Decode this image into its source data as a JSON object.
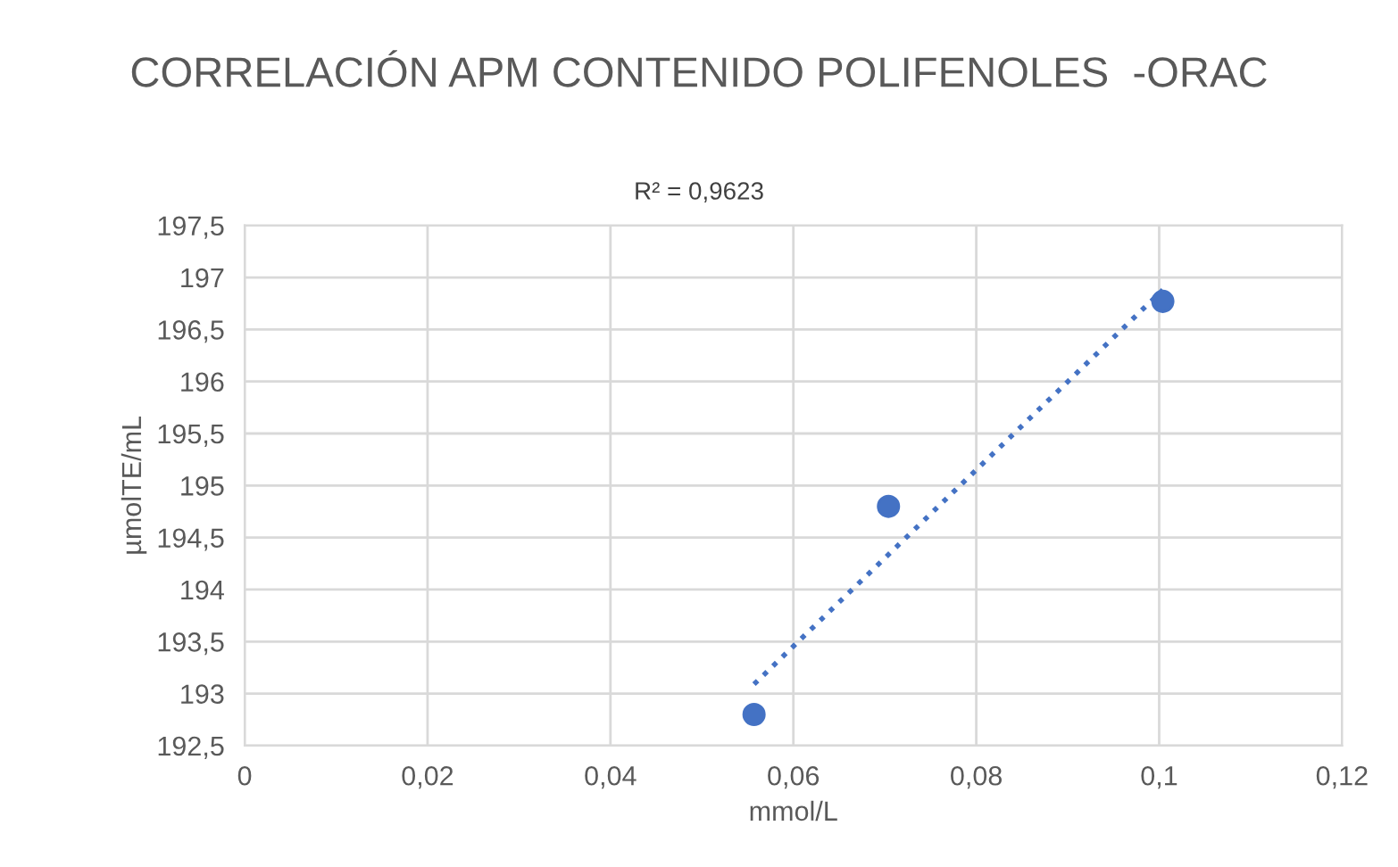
{
  "chart_data": {
    "type": "scatter",
    "title": "CORRELACIÓN APM CONTENIDO POLIFENOLES  -ORAC",
    "xlabel": "mmol/L",
    "ylabel": "µmolTE/mL",
    "series": [
      {
        "color": "#4472c4",
        "x": [
          0.0557,
          0.0704,
          0.1004
        ],
        "values": [
          192.8,
          194.8,
          196.77
        ],
        "marker": "circle"
      },
      {
        "type": "line",
        "color": "#4472c4",
        "x": [
          0.0557,
          0.1004
        ],
        "values": [
          193.09,
          196.88
        ],
        "line_style": "dotted"
      }
    ],
    "annotations": [
      "R² = 0,9623"
    ],
    "xlim": [
      0,
      0.12
    ],
    "xticks": [
      {
        "value": 0,
        "label": "0"
      },
      {
        "value": 0.02,
        "label": "0,02"
      },
      {
        "value": 0.04,
        "label": "0,04"
      },
      {
        "value": 0.06,
        "label": "0,06"
      },
      {
        "value": 0.08,
        "label": "0,08"
      },
      {
        "value": 0.1,
        "label": "0,1"
      },
      {
        "value": 0.12,
        "label": "0,12"
      }
    ],
    "ylim": [
      192.5,
      197.5
    ],
    "yticks": [
      {
        "value": 192.5,
        "label": "192,5"
      },
      {
        "value": 193,
        "label": "193"
      },
      {
        "value": 193.5,
        "label": "193,5"
      },
      {
        "value": 194,
        "label": "194"
      },
      {
        "value": 194.5,
        "label": "194,5"
      },
      {
        "value": 195,
        "label": "195"
      },
      {
        "value": 195.5,
        "label": "195,5"
      },
      {
        "value": 196,
        "label": "196"
      },
      {
        "value": 196.5,
        "label": "196,5"
      },
      {
        "value": 197,
        "label": "197"
      },
      {
        "value": 197.5,
        "label": "197,5"
      }
    ],
    "grid": true,
    "legend": false
  }
}
